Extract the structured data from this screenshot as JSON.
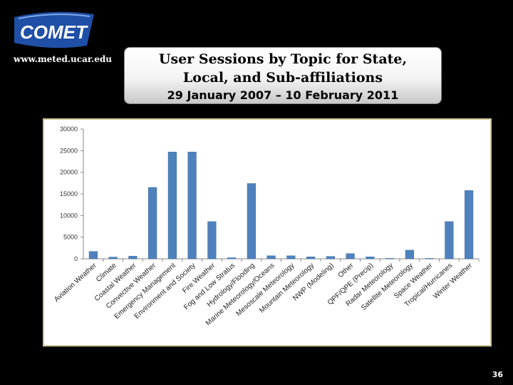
{
  "logo": {
    "text": "COMET",
    "color": "#1f4fa6"
  },
  "url": "www.meted.ucar.edu",
  "title": {
    "line1": "User Sessions by Topic for State,",
    "line2": "Local, and Sub-affiliations",
    "dates": "29 January 2007 – 10 February 2011"
  },
  "page_number": "36",
  "chart_data": {
    "type": "bar",
    "categories": [
      "Aviation Weather",
      "Climate",
      "Coastal Weather",
      "Convective Weather",
      "Emergency Management",
      "Environment and Society",
      "Fire Weather",
      "Fog and Low Stratus",
      "Hydrology/Flooding",
      "Marine Meteorology/Oceans",
      "Mesoscale Meteorology",
      "Mountain Meteorology",
      "NWP (Modeling)",
      "Other",
      "QPF/QPE (Precip)",
      "Radar Meteorology",
      "Satellite Meteorology",
      "Space Weather",
      "Tropical/Hurricanes",
      "Winter Weather"
    ],
    "values": [
      1700,
      400,
      600,
      16500,
      24700,
      24700,
      8600,
      250,
      17400,
      700,
      700,
      450,
      550,
      1200,
      450,
      100,
      2000,
      100,
      8600,
      15800
    ],
    "ylim": [
      0,
      30000
    ],
    "yticks": [
      "0",
      "5000",
      "10000",
      "15000",
      "20000",
      "25000",
      "30000"
    ],
    "grid": false,
    "bar_color": "#4f81bd"
  }
}
